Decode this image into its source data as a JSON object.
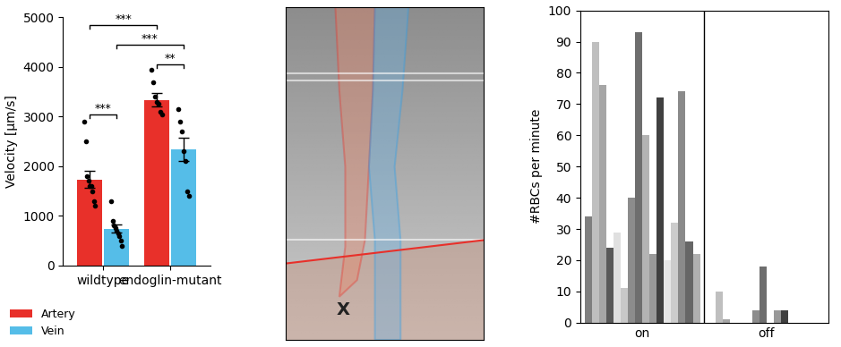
{
  "chart_data": [
    {
      "type": "bar",
      "ylabel": "Velocity [µm/s]",
      "categories": [
        "wildtype",
        "endoglin-mutant"
      ],
      "series": [
        {
          "name": "Artery",
          "color": "#e8302a",
          "values": [
            1730,
            3340
          ],
          "errors": [
            170,
            130
          ],
          "points": [
            [
              2900,
              2500,
              1800,
              1700,
              1600,
              1600,
              1500,
              1300,
              1200
            ],
            [
              3950,
              3700,
              3400,
              3300,
              3250,
              3100,
              3050
            ]
          ]
        },
        {
          "name": "Vein",
          "color": "#55bde8",
          "values": [
            740,
            2340
          ],
          "errors": [
            80,
            230
          ],
          "points": [
            [
              1300,
              900,
              800,
              750,
              700,
              650,
              600,
              500,
              400
            ],
            [
              3150,
              2900,
              2700,
              2300,
              2100,
              1500,
              1400
            ]
          ]
        }
      ],
      "ylim": [
        0,
        5000
      ],
      "yticks": [
        0,
        1000,
        2000,
        3000,
        4000,
        5000
      ],
      "legend": "lower left",
      "significance": [
        {
          "from": [
            "wildtype",
            "Artery"
          ],
          "to": [
            "wildtype",
            "Vein"
          ],
          "label": "***",
          "y": 3050
        },
        {
          "from": [
            "wildtype",
            "Artery"
          ],
          "to": [
            "endoglin-mutant",
            "Artery"
          ],
          "label": "***",
          "y": 4850
        },
        {
          "from": [
            "wildtype",
            "Vein"
          ],
          "to": [
            "endoglin-mutant",
            "Vein"
          ],
          "label": "***",
          "y": 4450
        },
        {
          "from": [
            "endoglin-mutant",
            "Artery"
          ],
          "to": [
            "endoglin-mutant",
            "Vein"
          ],
          "label": "**",
          "y": 4050
        }
      ]
    },
    {
      "type": "image",
      "annotations": [
        "X"
      ],
      "tick_labels": false
    },
    {
      "type": "bar",
      "ylabel": "#RBCs per minute",
      "categories": [
        "on",
        "off"
      ],
      "series": [
        {
          "color": "#7f7f7f",
          "values": [
            34,
            0
          ]
        },
        {
          "color": "#bfbfbf",
          "values": [
            90,
            10
          ]
        },
        {
          "color": "#a6a6a6",
          "values": [
            76,
            1
          ]
        },
        {
          "color": "#595959",
          "values": [
            24,
            0
          ]
        },
        {
          "color": "#e0e0e0",
          "values": [
            29,
            0
          ]
        },
        {
          "color": "#c8c8c8",
          "values": [
            11,
            0
          ]
        },
        {
          "color": "#8c8c8c",
          "values": [
            40,
            4
          ]
        },
        {
          "color": "#6e6e6e",
          "values": [
            93,
            18
          ]
        },
        {
          "color": "#b3b3b3",
          "values": [
            60,
            0
          ]
        },
        {
          "color": "#999999",
          "values": [
            22,
            4
          ]
        },
        {
          "color": "#404040",
          "values": [
            72,
            4
          ]
        },
        {
          "color": "#e6e6e6",
          "values": [
            20,
            0
          ]
        },
        {
          "color": "#cccccc",
          "values": [
            32,
            0
          ]
        },
        {
          "color": "#8a8a8a",
          "values": [
            74,
            0
          ]
        },
        {
          "color": "#666666",
          "values": [
            26,
            0
          ]
        },
        {
          "color": "#b0b0b0",
          "values": [
            22,
            0
          ]
        }
      ],
      "ylim": [
        0,
        100
      ],
      "yticks": [
        0,
        10,
        20,
        30,
        40,
        50,
        60,
        70,
        80,
        90,
        100
      ]
    }
  ]
}
